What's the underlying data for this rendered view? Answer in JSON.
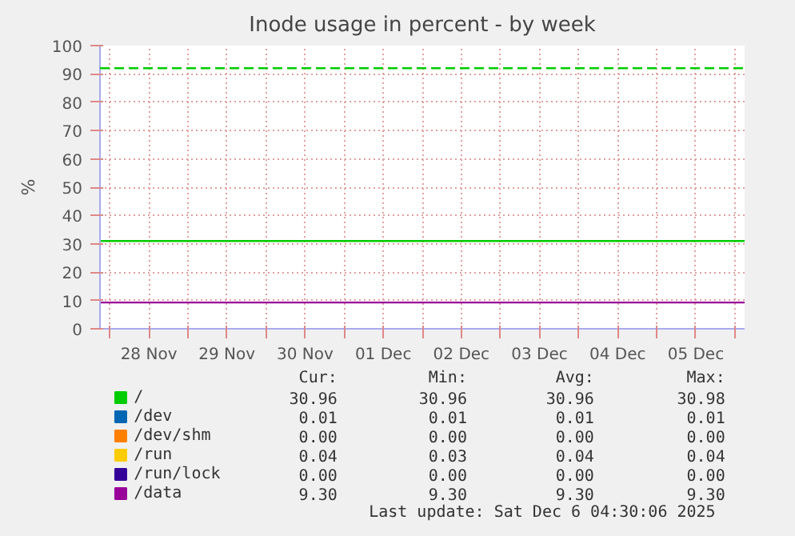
{
  "chart_data": {
    "type": "line",
    "title": "Inode usage in percent - by week",
    "ylabel": "%",
    "x": [
      "2025-11-27T21:00",
      "2025-12-06T03:00"
    ],
    "series": [
      {
        "name": "/",
        "color": "#00cc00",
        "values": [
          31,
          31
        ]
      },
      {
        "name": "/dev",
        "color": "#0066b3",
        "values": [
          null,
          null
        ]
      },
      {
        "name": "/dev/shm",
        "color": "#ff8000",
        "values": [
          null,
          null
        ]
      },
      {
        "name": "/run",
        "color": "#ffcc00",
        "values": [
          null,
          null
        ]
      },
      {
        "name": "/run/lock",
        "color": "#330099",
        "values": [
          null,
          null
        ]
      },
      {
        "name": "/data",
        "color": "#990099",
        "values": [
          9.3,
          9.3
        ]
      }
    ],
    "ylim": [
      0,
      100
    ],
    "yticks": [
      0,
      10,
      20,
      30,
      40,
      50,
      60,
      70,
      80,
      90,
      100
    ],
    "xlim": [
      "2025-11-27T21:00",
      "2025-12-06T03:00"
    ],
    "xticks": [
      {
        "value": "2025-11-28",
        "label": null
      },
      {
        "value": "2025-11-28T12:00",
        "label": "28 Nov"
      },
      {
        "value": "2025-11-29",
        "label": null
      },
      {
        "value": "2025-11-29T12:00",
        "label": "29 Nov"
      },
      {
        "value": "2025-11-30",
        "label": null
      },
      {
        "value": "2025-11-30T12:00",
        "label": "30 Nov"
      },
      {
        "value": "2025-12-01",
        "label": null
      },
      {
        "value": "2025-12-01T12:00",
        "label": "01 Dec"
      },
      {
        "value": "2025-12-02",
        "label": null
      },
      {
        "value": "2025-12-02T12:00",
        "label": "02 Dec"
      },
      {
        "value": "2025-12-03",
        "label": null
      },
      {
        "value": "2025-12-03T12:00",
        "label": "03 Dec"
      },
      {
        "value": "2025-12-04",
        "label": null
      },
      {
        "value": "2025-12-04T12:00",
        "label": "04 Dec"
      },
      {
        "value": "2025-12-05",
        "label": null
      },
      {
        "value": "2025-12-05T12:00",
        "label": "05 Dec"
      },
      {
        "value": "2025-12-06",
        "label": null
      }
    ],
    "ref_lines": [
      {
        "axis": "y",
        "value": 92,
        "color": "#00cc00",
        "line_style": "dashed"
      }
    ],
    "grid": true,
    "legend": "bottom",
    "annotations": [
      "Cur:",
      "Min:",
      "Avg:",
      "Max:",
      "30.96",
      "30.96",
      "30.96",
      "30.98",
      "0.01",
      "0.01",
      "0.01",
      "0.01",
      "0.00",
      "0.00",
      "0.00",
      "0.00",
      "0.04",
      "0.03",
      "0.04",
      "0.04",
      "0.00",
      "0.00",
      "0.00",
      "0.00",
      "9.30",
      "9.30",
      "9.30",
      "9.30",
      "Last update: Sat Dec  6 04:30:06 2025"
    ]
  }
}
